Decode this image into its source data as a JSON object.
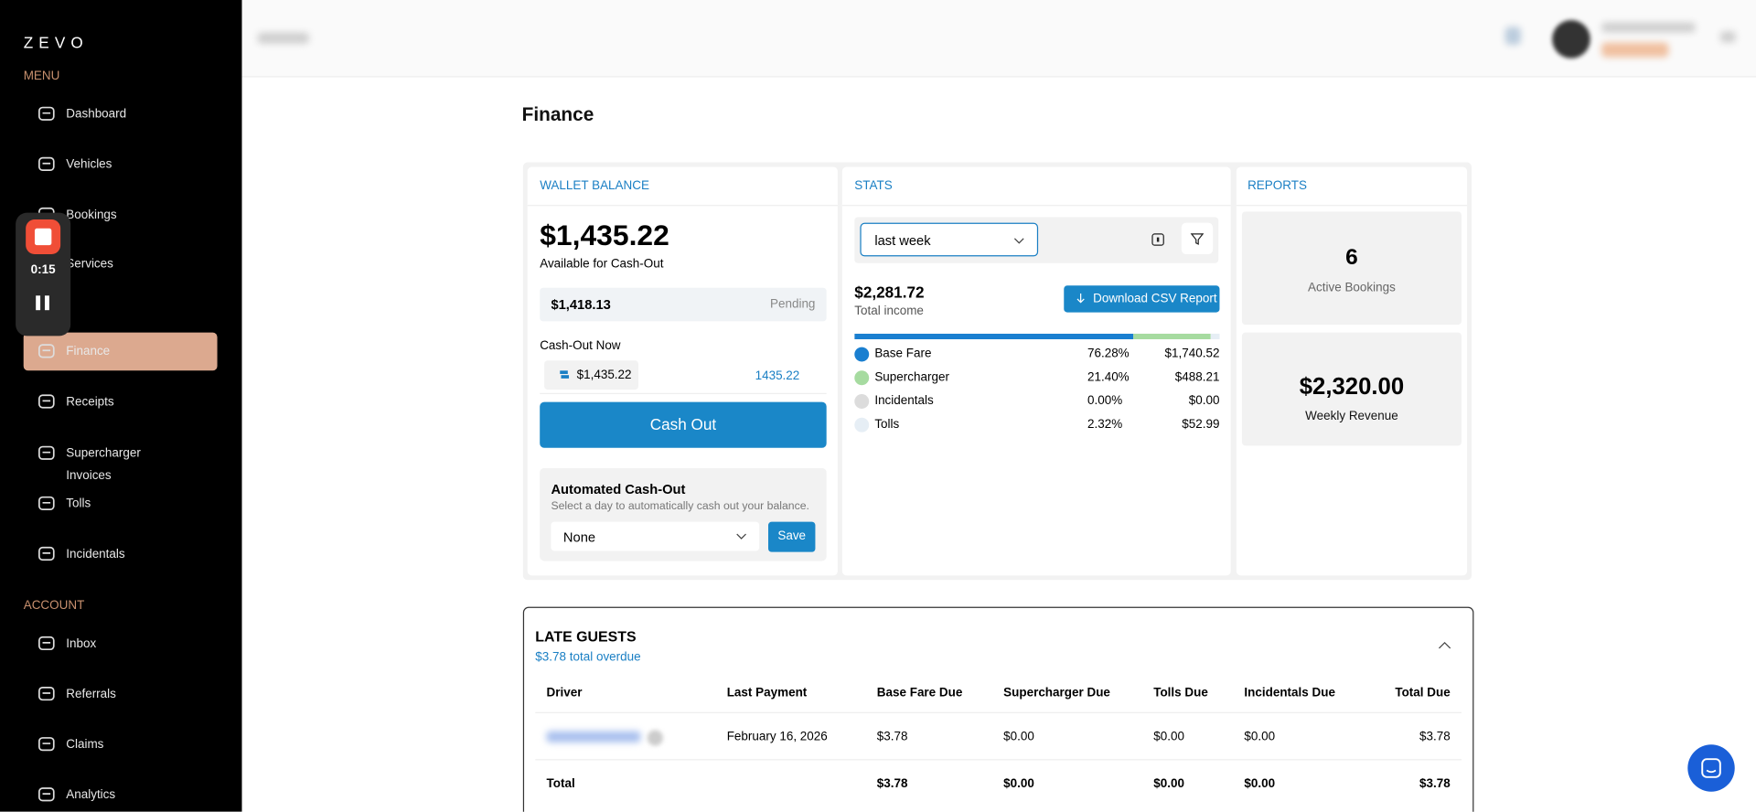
{
  "sidebar": {
    "logo": "ZEVO",
    "menu_heading": "MENU",
    "menu": [
      "Dashboard",
      "Vehicles",
      "Bookings",
      "Services",
      "Finance",
      "Receipts",
      "Supercharger Invoices",
      "Tolls",
      "Incidentals"
    ],
    "account_heading": "ACCOUNT",
    "account": [
      "Inbox",
      "Referrals",
      "Claims",
      "Analytics"
    ]
  },
  "recorder": {
    "time": "0:15"
  },
  "page_title": "Finance",
  "wallet": {
    "heading": "WALLET BALANCE",
    "balance": "$1,435.22",
    "balance_caption": "Available for Cash-Out",
    "pending_amount": "$1,418.13",
    "pending_label": "Pending",
    "cash_out_label": "Cash-Out Now",
    "cash_out_chip": "$1,435.22",
    "cash_out_input": "1435.22",
    "cash_out_button": "Cash Out",
    "auto": {
      "title": "Automated Cash-Out",
      "description": "Select a day to automatically cash out your balance.",
      "select": "None",
      "save": "Save"
    }
  },
  "stats": {
    "heading": "STATS",
    "period": "last week",
    "total": "$2,281.72",
    "total_caption": "Total income",
    "download": "Download CSV Report",
    "rows": [
      {
        "name": "Base Fare",
        "color": "#1a7fd0",
        "percent": "76.28%",
        "amount": "$1,740.52"
      },
      {
        "name": "Supercharger",
        "color": "#a6dba0",
        "percent": "21.40%",
        "amount": "$488.21"
      },
      {
        "name": "Incidentals",
        "color": "#dcdcdc",
        "percent": "0.00%",
        "amount": "$0.00"
      },
      {
        "name": "Tolls",
        "color": "#e6eef5",
        "percent": "2.32%",
        "amount": "$52.99"
      }
    ]
  },
  "reports": [
    {
      "value": "6",
      "label": "Active Bookings"
    },
    {
      "value": "$2,320.00",
      "label": "Weekly Revenue"
    }
  ],
  "late_guests": {
    "title": "LATE GUESTS",
    "subtitle": "$3.78 total overdue",
    "columns": [
      "Driver",
      "Last Payment",
      "Base Fare Due",
      "Supercharger Due",
      "Tolls Due",
      "Incidentals Due",
      "Total Due"
    ],
    "rows": [
      {
        "cells": [
          "February 16, 2026",
          "$3.78",
          "$0.00",
          "$0.00",
          "$0.00",
          "$3.78"
        ]
      }
    ],
    "total": {
      "label": "Total",
      "cells": [
        "$3.78",
        "$0.00",
        "$0.00",
        "$0.00",
        "$3.78"
      ]
    }
  }
}
